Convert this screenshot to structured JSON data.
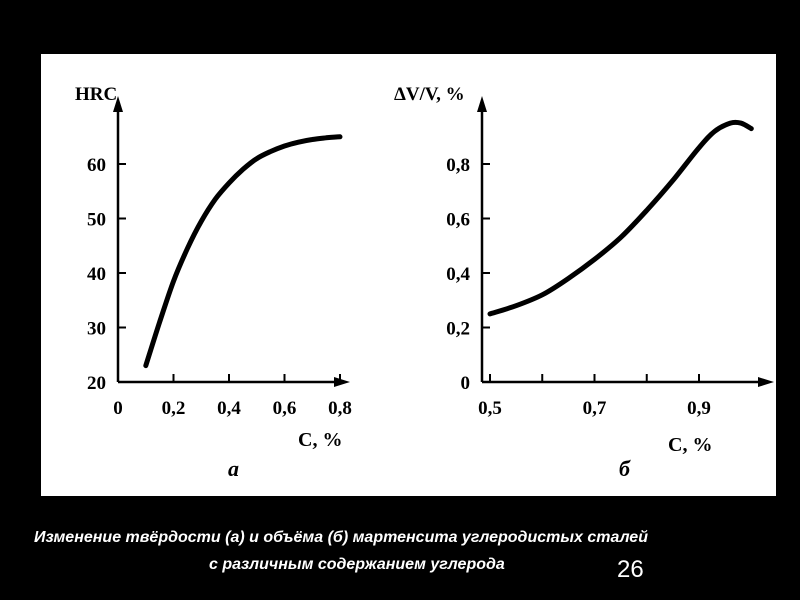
{
  "slide": {
    "caption_line1": "Изменение твёрдости (а) и объёма (б) мартенсита углеродистых сталей",
    "caption_line2": "с различным содержанием углерода",
    "page_number": "26",
    "background": "#000000",
    "panel_color": "#ffffff"
  },
  "chart_data": [
    {
      "type": "line",
      "panel_label": "а",
      "xlabel": "С, %",
      "ylabel": "HRC",
      "xlim": [
        0,
        0.85
      ],
      "ylim": [
        20,
        70
      ],
      "x_ticks": [
        0,
        0.2,
        0.4,
        0.6,
        0.8
      ],
      "x_tick_labels": [
        "0",
        "0,2",
        "0,4",
        "0,6",
        "0,8"
      ],
      "y_ticks": [
        20,
        30,
        40,
        50,
        60
      ],
      "y_tick_labels": [
        "20",
        "30",
        "40",
        "50",
        "60"
      ],
      "grid": false,
      "series": [
        {
          "x": [
            0.1,
            0.15,
            0.2,
            0.25,
            0.3,
            0.35,
            0.4,
            0.45,
            0.5,
            0.55,
            0.6,
            0.65,
            0.7,
            0.75,
            0.8
          ],
          "y": [
            23,
            31,
            38.5,
            44.5,
            49.5,
            53.5,
            56.5,
            59,
            61,
            62.3,
            63.3,
            64,
            64.5,
            64.8,
            65
          ]
        }
      ]
    },
    {
      "type": "line",
      "panel_label": "б",
      "xlabel": "С, %",
      "ylabel": "ΔV/V, %",
      "xlim": [
        0.5,
        1.05
      ],
      "ylim": [
        0,
        1.0
      ],
      "x_ticks": [
        0.5,
        0.7,
        0.9
      ],
      "x_tick_labels": [
        "0,5",
        "0,7",
        "0,9"
      ],
      "y_ticks": [
        0,
        0.2,
        0.4,
        0.6,
        0.8
      ],
      "y_tick_labels": [
        "0",
        "0,2",
        "0,4",
        "0,6",
        "0,8"
      ],
      "grid": false,
      "series": [
        {
          "x": [
            0.5,
            0.55,
            0.6,
            0.65,
            0.7,
            0.75,
            0.8,
            0.85,
            0.9,
            0.93,
            0.96,
            0.98,
            1.0
          ],
          "y": [
            0.25,
            0.28,
            0.32,
            0.38,
            0.45,
            0.53,
            0.63,
            0.74,
            0.86,
            0.92,
            0.95,
            0.95,
            0.93
          ]
        }
      ]
    }
  ]
}
